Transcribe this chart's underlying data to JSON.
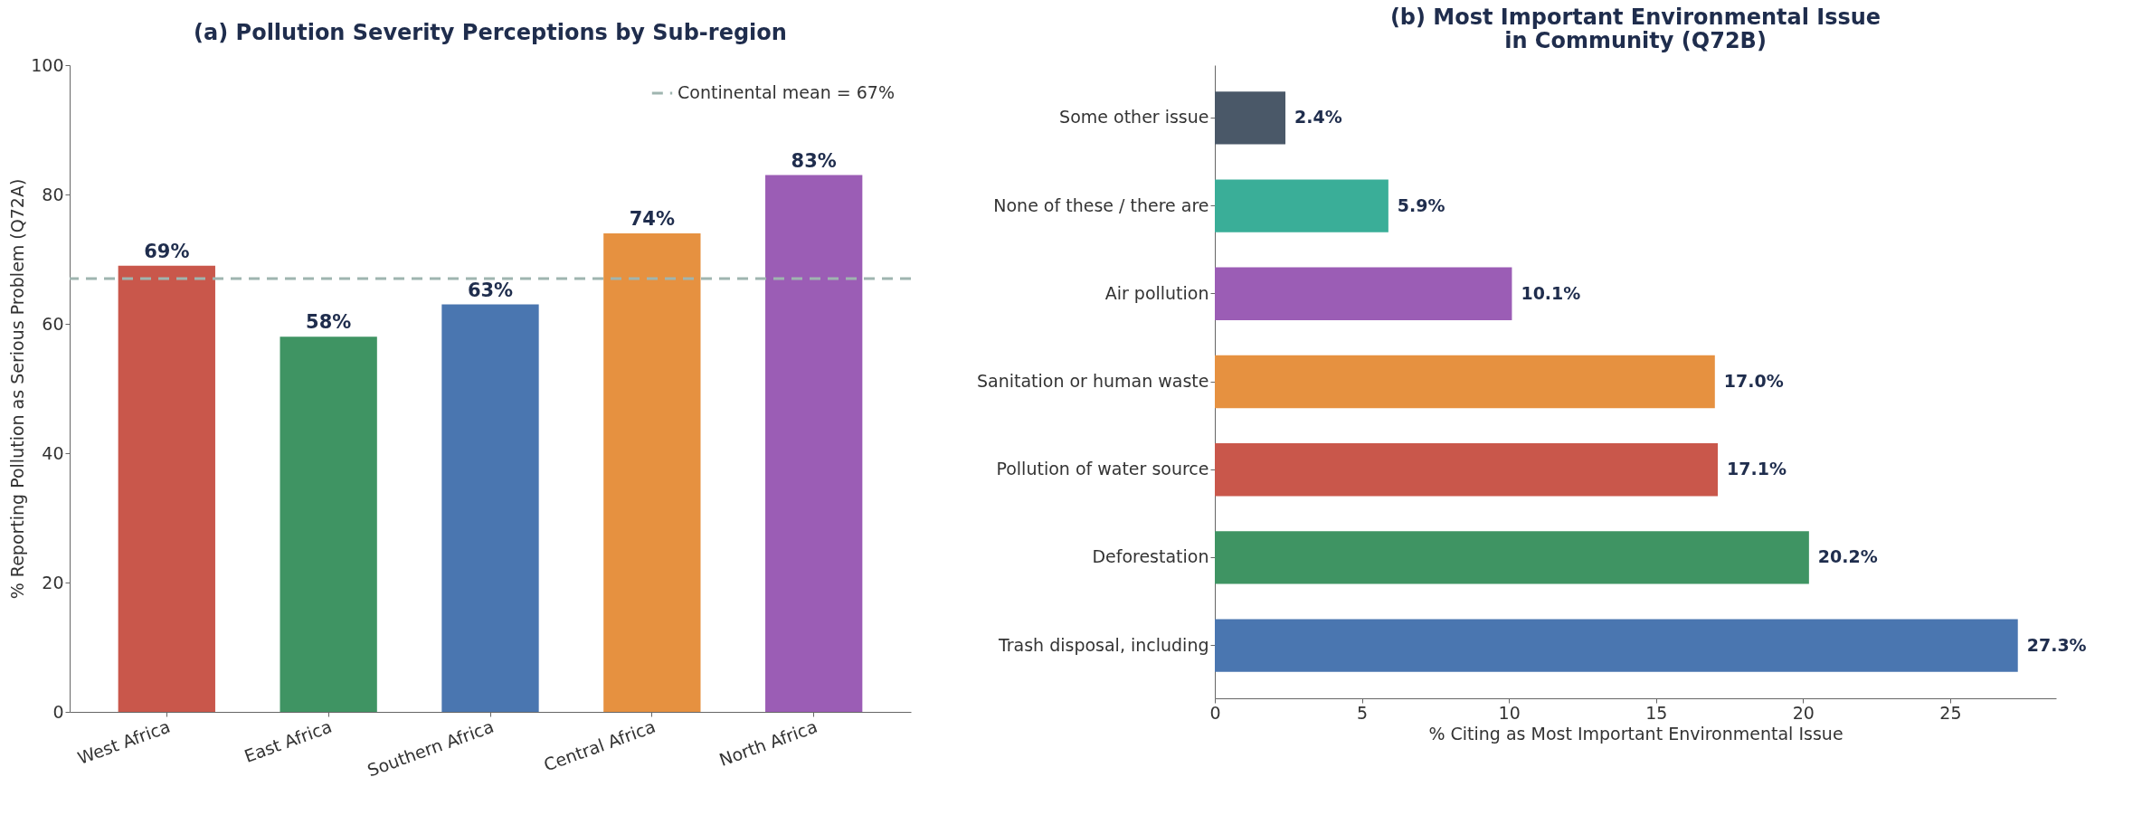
{
  "chart_data": [
    {
      "type": "bar",
      "title": "(a) Pollution Severity Perceptions by Sub-region",
      "ylabel": "% Reporting Pollution as Serious Problem (Q72A)",
      "categories": [
        "West Africa",
        "East Africa",
        "Southern Africa",
        "Central Africa",
        "North Africa"
      ],
      "values": [
        69,
        58,
        63,
        74,
        83
      ],
      "colors": [
        "#c9574b",
        "#3f9463",
        "#4a76b0",
        "#e69140",
        "#9b5db5"
      ],
      "value_labels": [
        "69%",
        "58%",
        "63%",
        "74%",
        "83%"
      ],
      "ylim": [
        0,
        100
      ],
      "yticks": [
        0,
        20,
        40,
        60,
        80,
        100
      ],
      "ref_lines": [
        {
          "axis": "y",
          "value": 67,
          "label": "Continental mean = 67%",
          "color": "#9fb5b0",
          "line_style": "dashed"
        }
      ],
      "legend": "top right",
      "grid": false
    },
    {
      "type": "bar",
      "orientation": "horizontal",
      "title": "(b) Most Important Environmental Issue\nin Community (Q72B)",
      "xlabel": "% Citing as Most Important Environmental Issue",
      "categories": [
        "Some other issue",
        "None of these / there are",
        "Air pollution",
        "Sanitation or human waste",
        "Pollution of water source",
        "Deforestation",
        "Trash disposal, including"
      ],
      "values": [
        2.4,
        5.9,
        10.1,
        17.0,
        17.1,
        20.2,
        27.3
      ],
      "colors": [
        "#4a5868",
        "#3aae98",
        "#9b5db5",
        "#e69140",
        "#c9574b",
        "#3f9463",
        "#4a76b0"
      ],
      "value_labels": [
        "2.4%",
        "5.9%",
        "10.1%",
        "17.0%",
        "17.1%",
        "20.2%",
        "27.3%"
      ],
      "xlim": [
        0,
        28.6
      ],
      "xticks": [
        0,
        5,
        10,
        15,
        20,
        25
      ],
      "grid": false
    }
  ]
}
